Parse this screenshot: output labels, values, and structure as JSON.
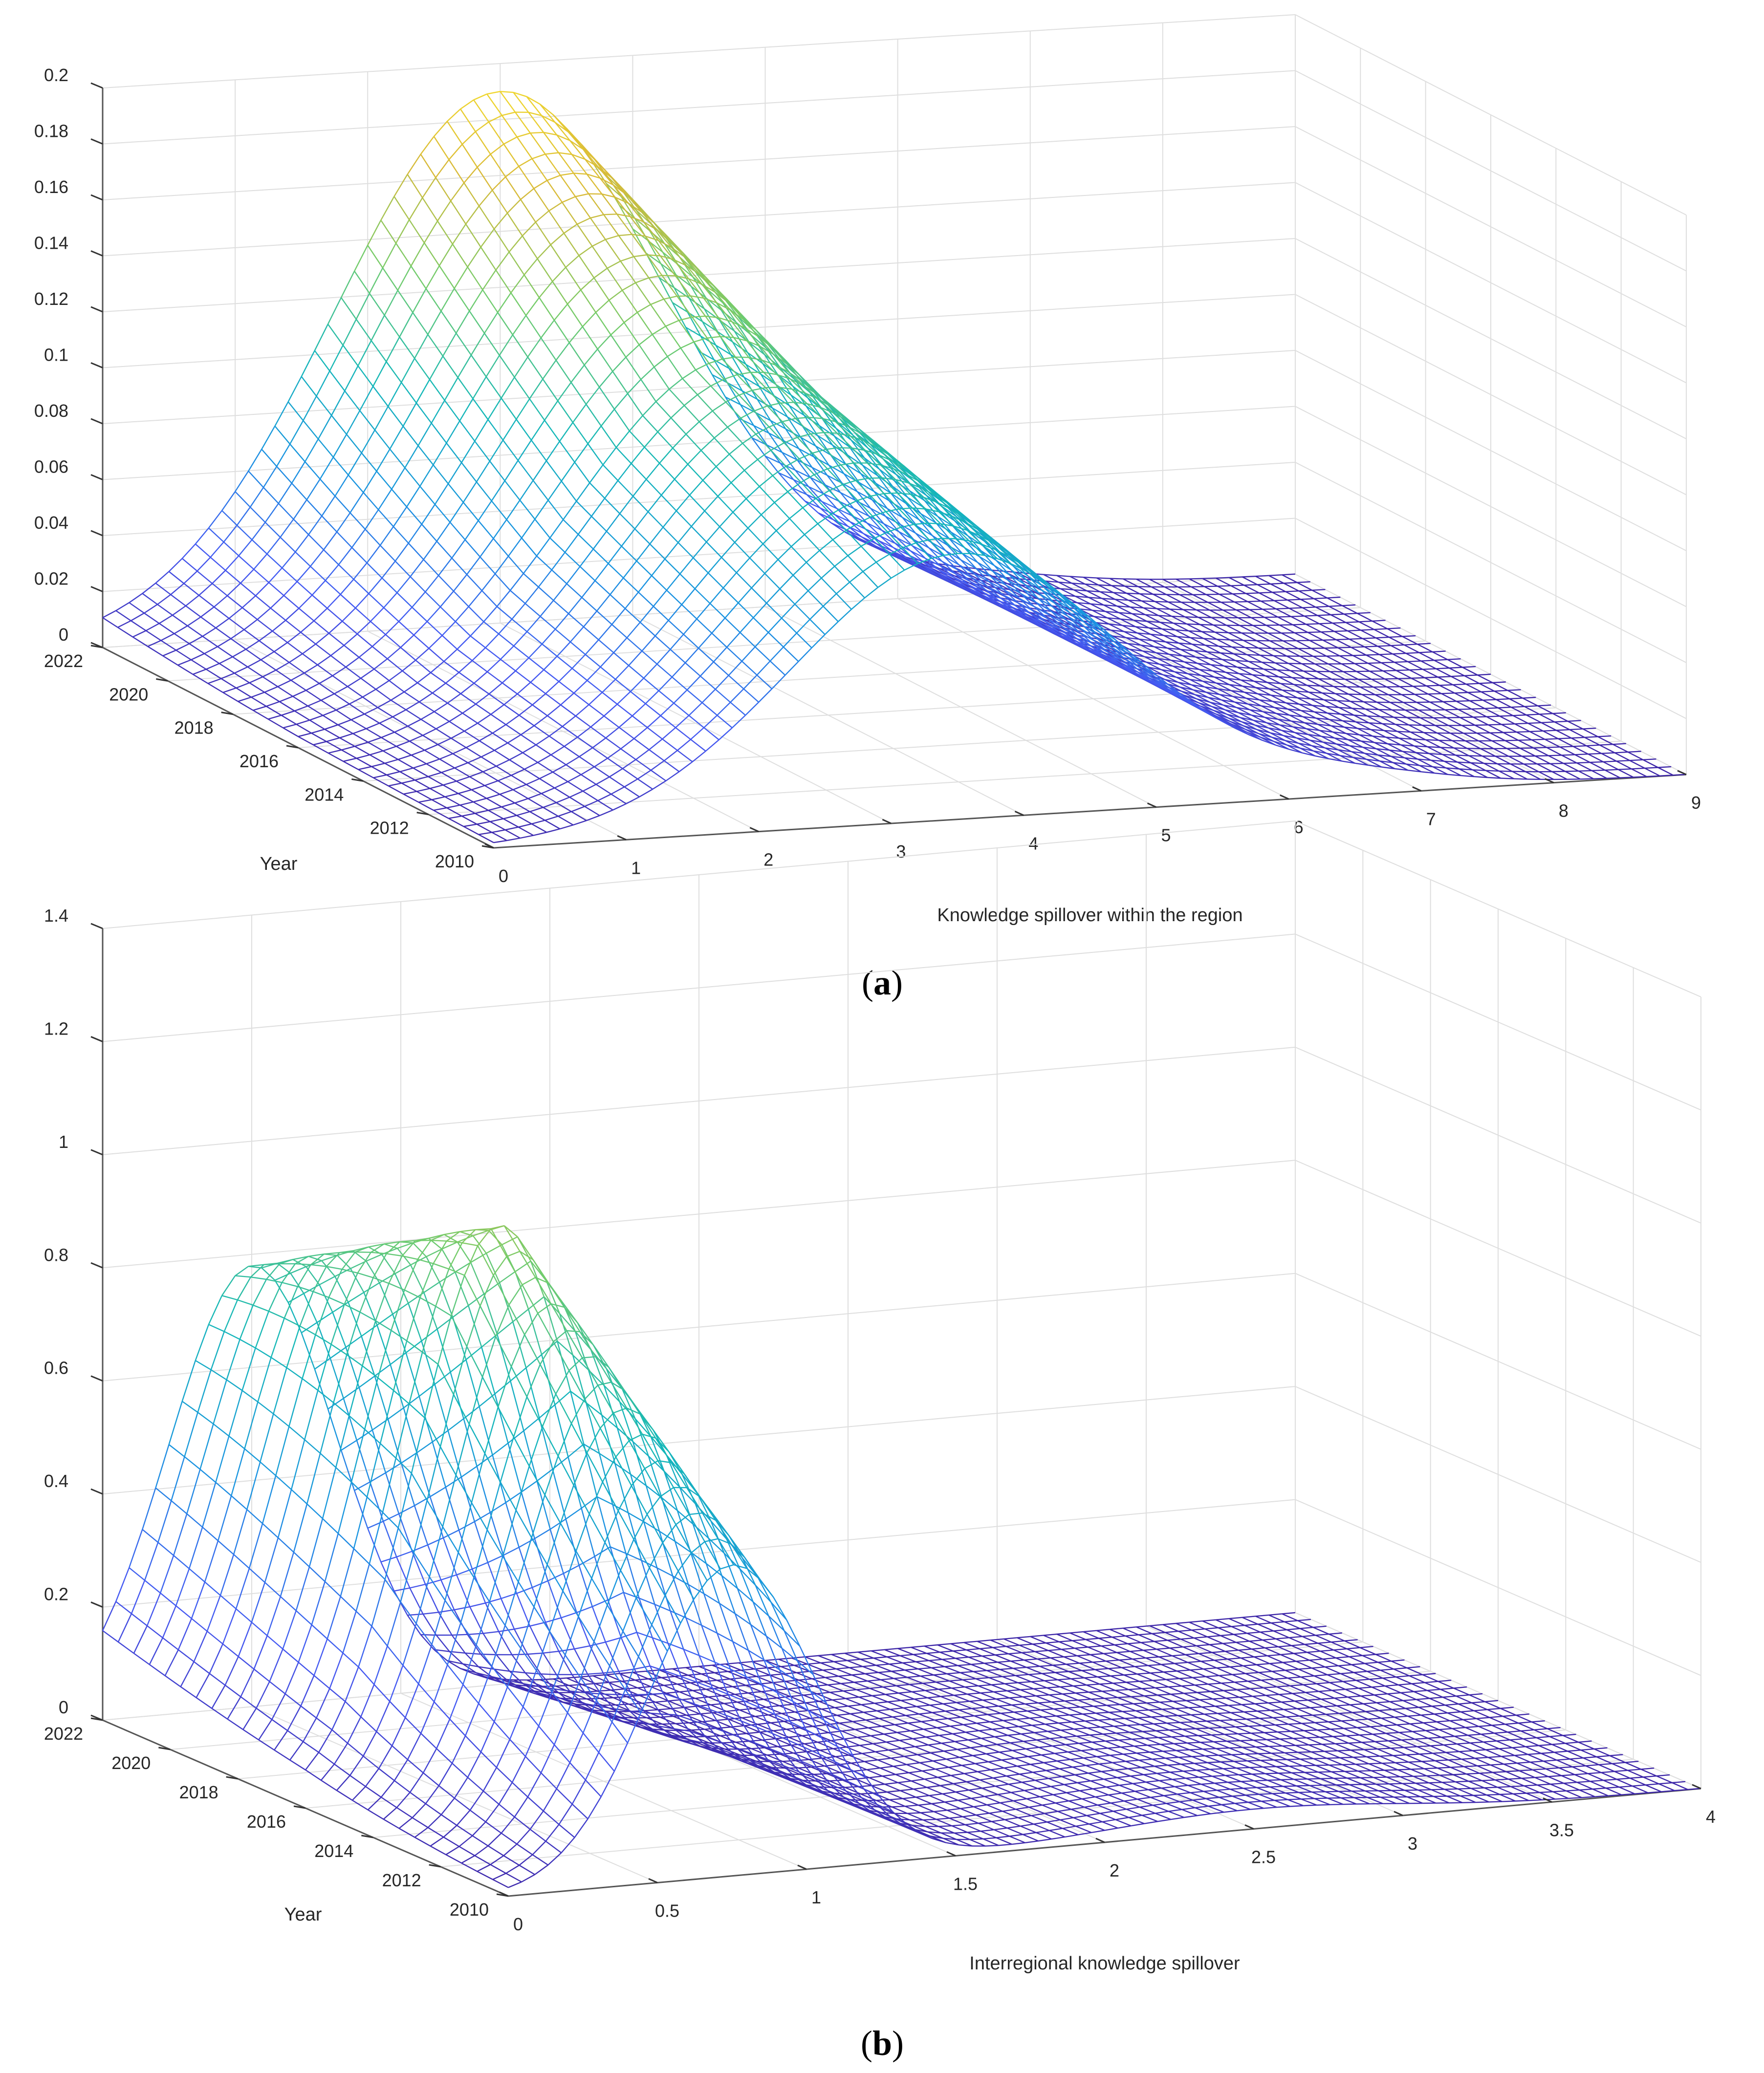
{
  "chart_data": [
    {
      "type": "surface",
      "panel": "a",
      "caption_letter": "a",
      "xlabel": "Knowledge spillover within the region",
      "ylabel": "Year",
      "zlabel": "",
      "x_ticks": [
        "0",
        "1",
        "2",
        "3",
        "4",
        "5",
        "6",
        "7",
        "8",
        "9"
      ],
      "y_ticks": [
        "2010",
        "2012",
        "2014",
        "2016",
        "2018",
        "2020",
        "2022"
      ],
      "z_ticks": [
        "0",
        "0.02",
        "0.04",
        "0.06",
        "0.08",
        "0.1",
        "0.12",
        "0.14",
        "0.16",
        "0.18",
        "0.2"
      ],
      "xlim": [
        0,
        9
      ],
      "ylim": [
        2010,
        2022
      ],
      "zlim": [
        0,
        0.2
      ],
      "series_by_year": [
        {
          "year": 2010,
          "peak_x": 3.5,
          "peak_density": 0.095
        },
        {
          "year": 2016,
          "peak_x": 3.3,
          "peak_density": 0.13
        },
        {
          "year": 2022,
          "peak_x": 3.0,
          "peak_density": 0.19
        }
      ]
    },
    {
      "type": "surface",
      "panel": "b",
      "caption_letter": "b",
      "xlabel": "Interregional knowledge spillover",
      "ylabel": "Year",
      "zlabel": "",
      "x_ticks": [
        "0",
        "0.5",
        "1",
        "1.5",
        "2",
        "2.5",
        "3",
        "3.5",
        "4"
      ],
      "y_ticks": [
        "2010",
        "2012",
        "2014",
        "2016",
        "2018",
        "2020",
        "2022"
      ],
      "z_ticks": [
        "0",
        "0.2",
        "0.4",
        "0.6",
        "0.8",
        "1",
        "1.2",
        "1.4"
      ],
      "xlim": [
        0,
        4
      ],
      "ylim": [
        2010,
        2022
      ],
      "zlim": [
        0,
        1.4
      ],
      "series_by_year": [
        {
          "year": 2010,
          "peak_x": 0.75,
          "peak_density": 0.55
        },
        {
          "year": 2016,
          "peak_x": 0.65,
          "peak_density": 1.0
        },
        {
          "year": 2022,
          "peak_x": 0.5,
          "peak_density": 0.78
        }
      ]
    }
  ]
}
